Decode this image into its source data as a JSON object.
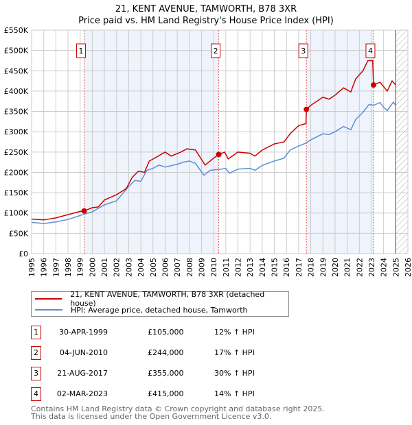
{
  "title_line1": "21, KENT AVENUE, TAMWORTH, B78 3XR",
  "title_line2": "Price paid vs. HM Land Registry's House Price Index (HPI)",
  "colors": {
    "property": "#cc0000",
    "hpi": "#5b8fd4",
    "shade": "#eef3fc"
  },
  "chart_data": {
    "type": "line",
    "title": "Price paid vs. HM Land Registry's House Price Index (HPI)",
    "xlim": [
      1995,
      2026
    ],
    "ylim": [
      0,
      550000
    ],
    "x_ticks": [
      "1995",
      "1996",
      "1997",
      "1998",
      "1999",
      "2000",
      "2001",
      "2002",
      "2003",
      "2004",
      "2005",
      "2006",
      "2007",
      "2008",
      "2009",
      "2010",
      "2011",
      "2012",
      "2013",
      "2014",
      "2015",
      "2016",
      "2017",
      "2018",
      "2019",
      "2020",
      "2021",
      "2022",
      "2023",
      "2024",
      "2025",
      "2026"
    ],
    "y_ticks": [
      {
        "v": 0,
        "l": "£0"
      },
      {
        "v": 50000,
        "l": "£50K"
      },
      {
        "v": 100000,
        "l": "£100K"
      },
      {
        "v": 150000,
        "l": "£150K"
      },
      {
        "v": 200000,
        "l": "£200K"
      },
      {
        "v": 250000,
        "l": "£250K"
      },
      {
        "v": 300000,
        "l": "£300K"
      },
      {
        "v": 350000,
        "l": "£350K"
      },
      {
        "v": 400000,
        "l": "£400K"
      },
      {
        "v": 450000,
        "l": "£450K"
      },
      {
        "v": 500000,
        "l": "£500K"
      },
      {
        "v": 550000,
        "l": "£550K"
      }
    ],
    "grid": true,
    "forecast_hatch_from": 2025,
    "series": [
      {
        "name": "21, KENT AVENUE, TAMWORTH, B78 3XR (detached house)",
        "color": "#cc0000",
        "x": [
          1995,
          1996,
          1997,
          1998,
          1999,
          1999.33,
          2000,
          2000.5,
          2001,
          2002,
          2002.8,
          2003.3,
          2003.8,
          2004.3,
          2004.7,
          2005.2,
          2006,
          2006.5,
          2007.3,
          2007.8,
          2008.5,
          2009.3,
          2010,
          2010.42,
          2010.9,
          2011.2,
          2012,
          2013,
          2013.4,
          2014,
          2015,
          2015.8,
          2016.3,
          2017,
          2017.6,
          2017.64,
          2018,
          2019,
          2019.5,
          2020,
          2020.7,
          2021.3,
          2021.7,
          2022.3,
          2022.7,
          2023.1,
          2023.17,
          2023.7,
          2024.3,
          2024.7,
          2025
        ],
        "y": [
          85000,
          83000,
          88000,
          96000,
          104000,
          105000,
          113000,
          115000,
          132000,
          145000,
          160000,
          188000,
          203000,
          200000,
          228000,
          236000,
          250000,
          240000,
          250000,
          258000,
          255000,
          218000,
          235000,
          244000,
          250000,
          233000,
          250000,
          247000,
          240000,
          255000,
          270000,
          275000,
          295000,
          315000,
          320000,
          355000,
          365000,
          385000,
          380000,
          390000,
          408000,
          398000,
          430000,
          450000,
          475000,
          475000,
          415000,
          422000,
          400000,
          425000,
          415000
        ]
      },
      {
        "name": "HPI: Average price, detached house, Tamworth",
        "color": "#5b8fd4",
        "x": [
          1995,
          1996,
          1997,
          1998,
          1999,
          2000,
          2001,
          2002,
          2003,
          2003.5,
          2004,
          2004.5,
          2005,
          2005.5,
          2006,
          2007,
          2007.5,
          2008,
          2008.5,
          2009.2,
          2009.7,
          2010.4,
          2011,
          2011.3,
          2012,
          2013,
          2013.4,
          2014,
          2015,
          2015.8,
          2016.3,
          2017,
          2017.6,
          2018,
          2019,
          2019.5,
          2020,
          2020.7,
          2021.3,
          2021.7,
          2022.3,
          2022.8,
          2023.2,
          2023.7,
          2024,
          2024.3,
          2024.8,
          2025
        ],
        "y": [
          77000,
          74000,
          78000,
          84000,
          94000,
          103000,
          120000,
          130000,
          165000,
          180000,
          178000,
          205000,
          210000,
          218000,
          213000,
          220000,
          225000,
          228000,
          222000,
          193000,
          205000,
          207000,
          210000,
          198000,
          208000,
          210000,
          205000,
          217000,
          228000,
          235000,
          255000,
          265000,
          272000,
          280000,
          295000,
          293000,
          300000,
          313000,
          305000,
          330000,
          348000,
          367000,
          365000,
          372000,
          360000,
          352000,
          373000,
          365000
        ]
      }
    ],
    "sales": [
      {
        "n": "1",
        "x": 1999.33,
        "y": 105000,
        "date": "30-APR-1999",
        "price": "£105,000",
        "hpi": "12% ↑ HPI"
      },
      {
        "n": "2",
        "x": 2010.42,
        "y": 244000,
        "date": "04-JUN-2010",
        "price": "£244,000",
        "hpi": "17% ↑ HPI"
      },
      {
        "n": "3",
        "x": 2017.64,
        "y": 355000,
        "date": "21-AUG-2017",
        "price": "£355,000",
        "hpi": "30% ↑ HPI"
      },
      {
        "n": "4",
        "x": 2023.17,
        "y": 415000,
        "date": "02-MAR-2023",
        "price": "£415,000",
        "hpi": "14% ↑ HPI"
      }
    ],
    "legend": [
      "21, KENT AVENUE, TAMWORTH, B78 3XR (detached house)",
      "HPI: Average price, detached house, Tamworth"
    ],
    "legend_placement": "below"
  },
  "footer": [
    "Contains HM Land Registry data © Crown copyright and database right 2025.",
    "This data is licensed under the Open Government Licence v3.0."
  ]
}
